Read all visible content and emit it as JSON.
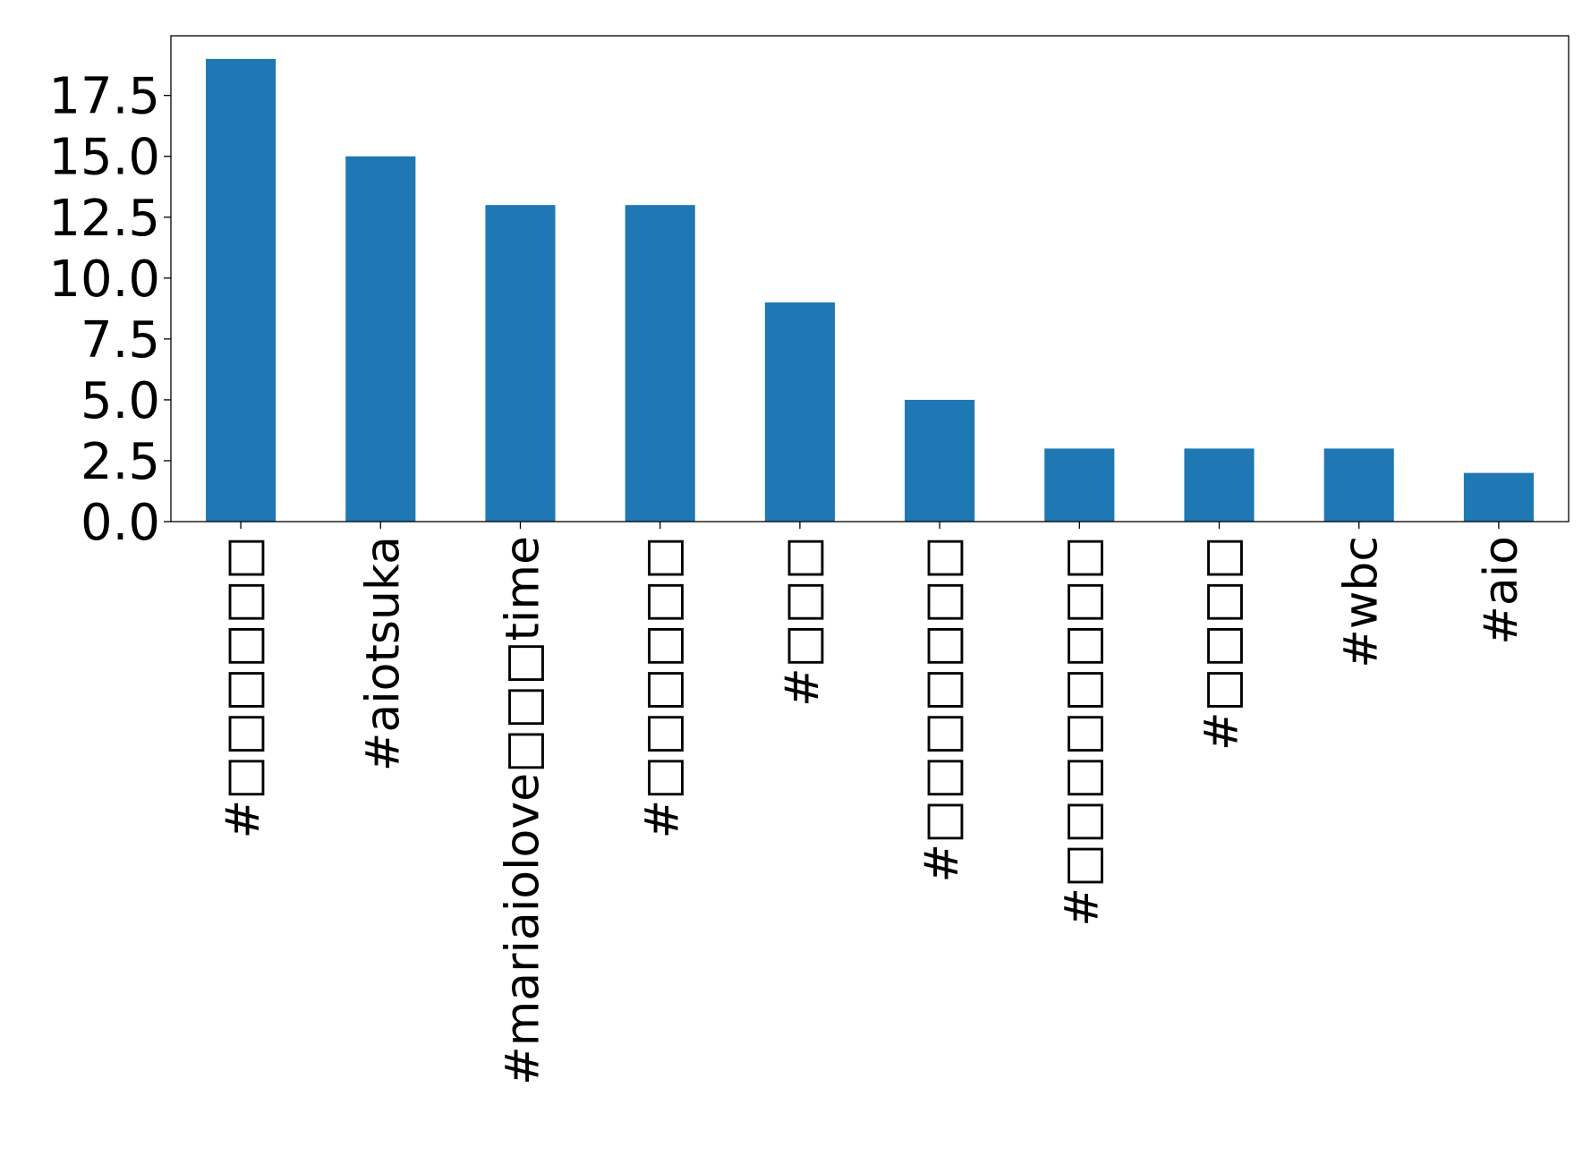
{
  "chart_data": {
    "type": "bar",
    "title": "",
    "xlabel": "",
    "ylabel": "",
    "categories": [
      "#□□□□□□",
      "#aiotsuka",
      "#mariaiolove□□□time",
      "#□□□□□□",
      "#□□□",
      "#□□□□□□□",
      "#□□□□□□□□",
      "#□□□□",
      "#wbc",
      "#aio"
    ],
    "values": [
      19,
      15,
      13,
      13,
      9,
      5,
      3,
      3,
      3,
      2
    ],
    "ylim": [
      0,
      19.95
    ],
    "yticks": [
      "0.0",
      "2.5",
      "5.0",
      "7.5",
      "10.0",
      "12.5",
      "15.0",
      "17.5"
    ],
    "bar_color": "#1f77b4",
    "grid": false,
    "legend": "none"
  }
}
